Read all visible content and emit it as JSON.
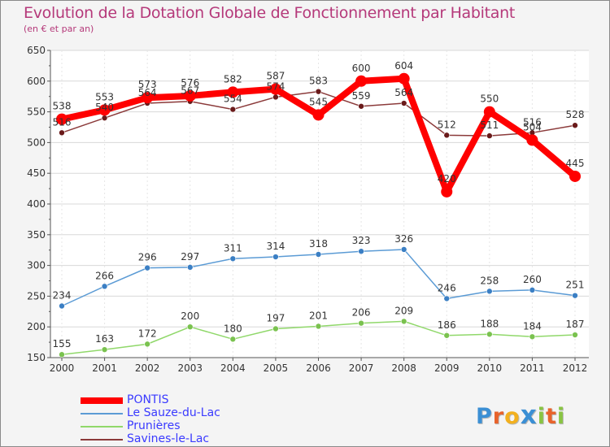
{
  "header": {
    "title": "Evolution de la Dotation Globale de Fonctionnement par Habitant",
    "subtitle": "(en € et par an)"
  },
  "logo": {
    "text": "Proxiti",
    "letters": [
      "P",
      "r",
      "o",
      "x",
      "i",
      "t",
      "i"
    ],
    "colors": [
      "#3b8fd4",
      "#e8632b",
      "#f2b01e",
      "#3b8fd4",
      "#89c442",
      "#e8632b",
      "#89c442"
    ]
  },
  "chart_data": {
    "type": "line",
    "title": "Evolution de la Dotation Globale de Fonctionnement par Habitant",
    "subtitle": "(en € et par an)",
    "x": [
      "2000",
      "2001",
      "2002",
      "2003",
      "2004",
      "2005",
      "2006",
      "2007",
      "2008",
      "2009",
      "2010",
      "2011",
      "2012"
    ],
    "ylim": [
      150,
      650
    ],
    "yticks": [
      150,
      200,
      250,
      300,
      350,
      400,
      450,
      500,
      550,
      600,
      650
    ],
    "grid": true,
    "legend_position": "bottom-left",
    "series": [
      {
        "name": "PONTIS",
        "color": "#ff0000",
        "line_color": "#ff0000",
        "marker_color": "#ff0000",
        "width": 8,
        "marker": 7,
        "values": [
          538,
          553,
          573,
          576,
          582,
          587,
          545,
          600,
          604,
          420,
          550,
          504,
          445
        ],
        "labels": [
          "538",
          "553",
          "573",
          "576",
          "582",
          "587",
          "545",
          "600",
          "604",
          "420",
          "550",
          "504",
          "445"
        ]
      },
      {
        "name": "Le Sauze-du-Lac",
        "color": "#5b9bd5",
        "line_color": "#5b9bd5",
        "marker_color": "#3b7fc4",
        "width": 1.5,
        "marker": 3.5,
        "values": [
          234,
          266,
          296,
          297,
          311,
          314,
          318,
          323,
          326,
          246,
          258,
          260,
          251
        ],
        "labels": [
          "234",
          "266",
          "296",
          "297",
          "311",
          "314",
          "318",
          "323",
          "326",
          "246",
          "258",
          "260",
          "251"
        ]
      },
      {
        "name": "Prunières",
        "color": "#90d86a",
        "line_color": "#90d86a",
        "marker_color": "#7ac24f",
        "width": 1.5,
        "marker": 3.5,
        "values": [
          155,
          163,
          172,
          200,
          180,
          197,
          201,
          206,
          209,
          186,
          188,
          184,
          187
        ],
        "labels": [
          "155",
          "163",
          "172",
          "200",
          "180",
          "197",
          "201",
          "206",
          "209",
          "186",
          "188",
          "184",
          "187"
        ]
      },
      {
        "name": "Savines-le-Lac",
        "color": "#8b2f2f",
        "line_color": "#8b3a3a",
        "marker_color": "#6a1a1a",
        "width": 1.5,
        "marker": 3.5,
        "values": [
          516,
          540,
          564,
          567,
          554,
          574,
          583,
          559,
          564,
          512,
          511,
          516,
          528
        ],
        "labels": [
          "516",
          "540",
          "564",
          "567",
          "554",
          "574",
          "583",
          "559",
          "564",
          "512",
          "511",
          "516",
          "528"
        ]
      }
    ]
  }
}
